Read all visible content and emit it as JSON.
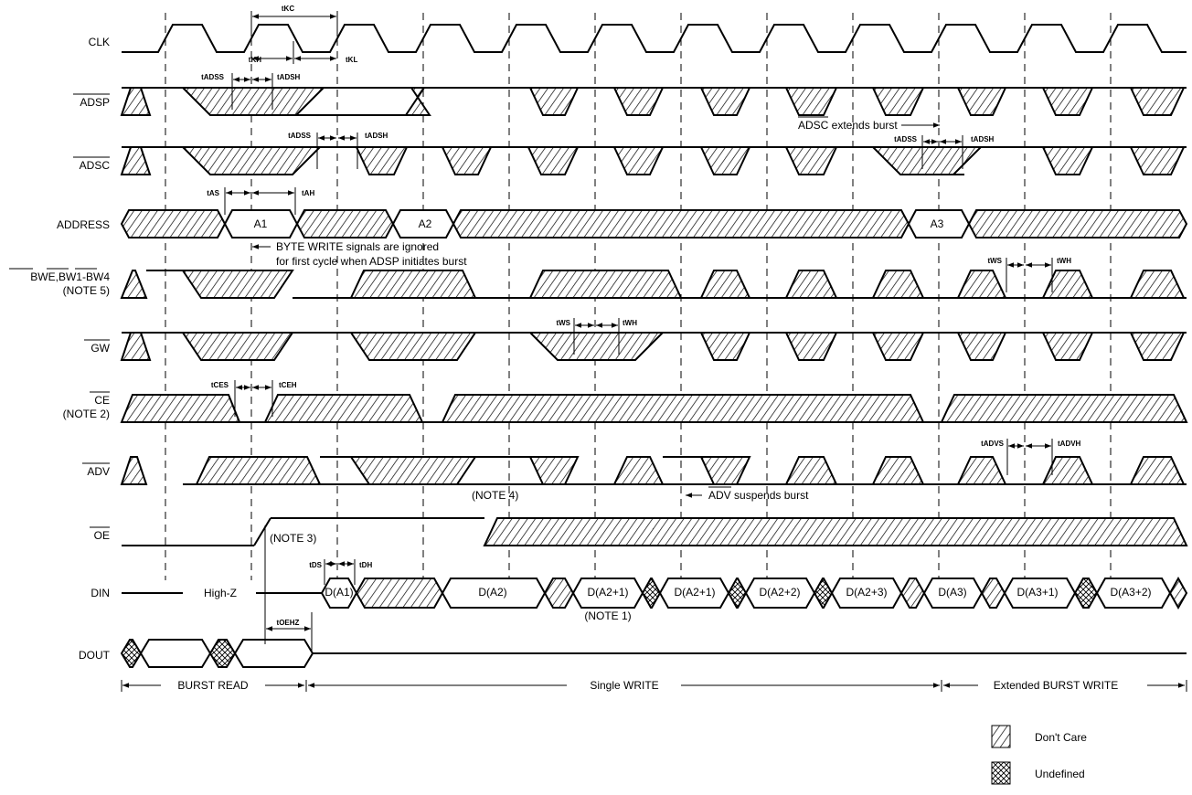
{
  "colors": {
    "ink": "#000000",
    "background": "#ffffff"
  },
  "signals": {
    "clk": "CLK",
    "adsp": "ADSP",
    "adsc": "ADSC",
    "address": "ADDRESS",
    "bwe_a": "BWE",
    "bwe_b": ",",
    "bwe_c": "BW1",
    "bwe_d": "-",
    "bwe_e": "BW4",
    "bwe_note": "(NOTE 5)",
    "gw": "GW",
    "ce": "CE",
    "ce_note": "(NOTE 2)",
    "adv": "ADV",
    "oe": "OE",
    "din": "DIN",
    "dout": "DOUT"
  },
  "timing": {
    "tkc": "tKC",
    "tkh": "tKH",
    "tkl": "tKL",
    "tadss": "tADSS",
    "tadsh": "tADSH",
    "tas": "tAS",
    "tah": "tAH",
    "tws": "tWS",
    "twh": "tWH",
    "tces": "tCES",
    "tceh": "tCEH",
    "tadvs": "tADVS",
    "tadvh": "tADVH",
    "tds": "tDS",
    "tdh": "tDH",
    "toehz": "tOEHZ"
  },
  "address_values": {
    "a1": "A1",
    "a2": "A2",
    "a3": "A3"
  },
  "din_values": [
    "D(A1)",
    "D(A2)",
    "D(A2+1)",
    "D(A2+1)",
    "D(A2+2)",
    "D(A2+3)",
    "D(A3)",
    "D(A3+1)",
    "D(A3+2)"
  ],
  "annotations": {
    "adsc_extends_label": "ADSC",
    "adsc_extends_rest": " extends burst",
    "byte_write_1": "BYTE WRITE signals are ignored",
    "byte_write_2": "for first cycle when ADSP initiates burst",
    "note4": "(NOTE 4)",
    "adv_suspends_label": "ADV",
    "adv_suspends_rest": " suspends burst",
    "note3": "(NOTE 3)",
    "highz": "High-Z",
    "note1": "(NOTE 1)"
  },
  "phases": {
    "burst_read": "BURST READ",
    "single_write": "Single WRITE",
    "extended_burst_write": "Extended BURST WRITE"
  },
  "legend": {
    "dont_care": "Don't Care",
    "undefined": "Undefined"
  }
}
